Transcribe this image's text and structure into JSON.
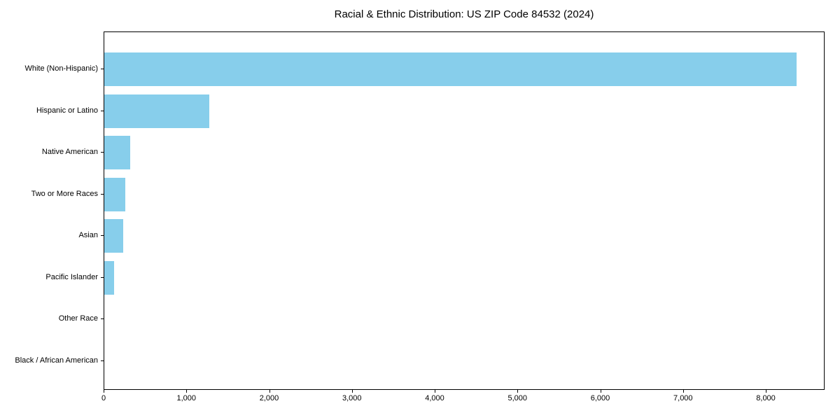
{
  "title": "Racial & Ethnic Distribution: US ZIP Code 84532 (2024)",
  "colors": {
    "bar": "#87CEEB",
    "axis": "#000000",
    "background": "#FFFFFF",
    "text": "#000000"
  },
  "chart_data": {
    "type": "bar",
    "orientation": "horizontal",
    "title": "Racial & Ethnic Distribution: US ZIP Code 84532 (2024)",
    "categories": [
      "White (Non-Hispanic)",
      "Hispanic or Latino",
      "Native American",
      "Two or More Races",
      "Asian",
      "Pacific Islander",
      "Other Race",
      "Black / African American"
    ],
    "values": [
      8360,
      1270,
      310,
      255,
      225,
      120,
      0,
      0
    ],
    "xlabel": "",
    "ylabel": "",
    "xlim": [
      0,
      8710
    ],
    "x_ticks": [
      0,
      1000,
      2000,
      3000,
      4000,
      5000,
      6000,
      7000,
      8000
    ],
    "x_tick_labels": [
      "0",
      "1,000",
      "2,000",
      "3,000",
      "4,000",
      "5,000",
      "6,000",
      "7,000",
      "8,000"
    ],
    "grid": false,
    "legend": null,
    "bar_color": "#87CEEB"
  }
}
